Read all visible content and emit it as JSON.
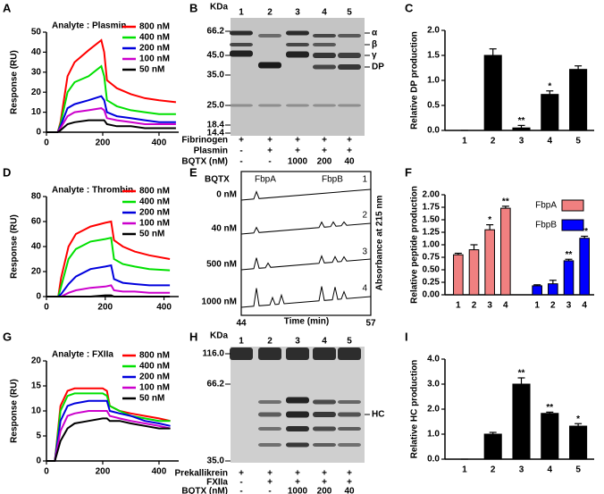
{
  "chart_data": [
    {
      "type": "line",
      "panel": "A",
      "title": "Analyte : Plasmin",
      "ylabel": "Response (RU)",
      "x": [
        0,
        40,
        50,
        75,
        100,
        150,
        195,
        205,
        215,
        250,
        300,
        350,
        400,
        460
      ],
      "xlim": [
        0,
        470
      ],
      "xticks": [
        0,
        200,
        400
      ],
      "ylim": [
        0,
        50
      ],
      "yticks": [
        0,
        10,
        20,
        30,
        40,
        50
      ],
      "legend": "upper right",
      "series": [
        {
          "name": "800 nM",
          "color": "#ff0000",
          "values": [
            0,
            0,
            5,
            28,
            35,
            41,
            46,
            40,
            26,
            22,
            19,
            17,
            16,
            15
          ]
        },
        {
          "name": "400 nM",
          "color": "#00e000",
          "values": [
            0,
            0,
            4,
            20,
            25,
            28,
            33,
            28,
            16,
            13,
            11,
            10,
            9,
            9
          ]
        },
        {
          "name": "200 nM",
          "color": "#0000dd",
          "values": [
            0,
            0,
            3,
            12,
            14,
            16,
            18,
            16,
            10,
            8,
            7,
            6,
            5,
            5
          ]
        },
        {
          "name": "100 nM",
          "color": "#cc00cc",
          "values": [
            0,
            0,
            2,
            8,
            10,
            11,
            12,
            11,
            7,
            6,
            5,
            4,
            4,
            4
          ]
        },
        {
          "name": "50 nM",
          "color": "#000000",
          "values": [
            0,
            0,
            1,
            4,
            5,
            6,
            6,
            6,
            4,
            3,
            3,
            2,
            2,
            2
          ]
        }
      ]
    },
    {
      "type": "bar",
      "panel": "C",
      "ylabel": "Relative DP production",
      "categories": [
        "1",
        "2",
        "3",
        "4",
        "5"
      ],
      "values": [
        0,
        1.5,
        0.05,
        0.72,
        1.22
      ],
      "errors": [
        0,
        0.13,
        0.05,
        0.07,
        0.07
      ],
      "significance": [
        null,
        null,
        "**",
        "*",
        null
      ],
      "color": "#000000",
      "ylim": [
        0,
        2
      ],
      "yticks": [
        {
          "value": 0,
          "label": "0.0"
        },
        0.5,
        {
          "value": 1,
          "label": "1.0"
        },
        1.5,
        {
          "value": 2,
          "label": "2.0"
        }
      ]
    },
    {
      "type": "line",
      "panel": "D",
      "title": "Analyte : Thrombin",
      "ylabel": "Response (RU)",
      "x": [
        0,
        40,
        50,
        75,
        100,
        150,
        200,
        220,
        230,
        260,
        300,
        350,
        420
      ],
      "xlim": [
        0,
        450
      ],
      "xticks": [
        0,
        200,
        400
      ],
      "ylim": [
        0,
        80
      ],
      "yticks": [
        0,
        20,
        40,
        60,
        80
      ],
      "legend": "upper right",
      "series": [
        {
          "name": "800 nM",
          "color": "#ff0000",
          "values": [
            0,
            0,
            15,
            40,
            50,
            56,
            59,
            60,
            45,
            40,
            36,
            33,
            30
          ]
        },
        {
          "name": "400 nM",
          "color": "#00e000",
          "values": [
            0,
            0,
            8,
            30,
            38,
            44,
            46,
            47,
            30,
            26,
            24,
            22,
            21
          ]
        },
        {
          "name": "200 nM",
          "color": "#0000dd",
          "values": [
            0,
            0,
            2,
            10,
            16,
            22,
            24,
            25,
            14,
            11,
            10,
            9,
            9
          ]
        },
        {
          "name": "100 nM",
          "color": "#cc00cc",
          "values": [
            0,
            0,
            0,
            3,
            5,
            7,
            8,
            9,
            5,
            4,
            4,
            3,
            3
          ]
        },
        {
          "name": "50 nM",
          "color": "#000000",
          "values": [
            0,
            0,
            0,
            0,
            0,
            0,
            1,
            1,
            0,
            0,
            0,
            0,
            0
          ]
        }
      ]
    },
    {
      "type": "bar",
      "panel": "F",
      "ylabel": "Relative peptide production",
      "categories": [
        "1",
        "2",
        "3",
        "4"
      ],
      "legend": "upper right",
      "series": [
        {
          "name": "FbpA",
          "color": "#f08080",
          "values": [
            0.8,
            0.9,
            1.3,
            1.73
          ],
          "errors": [
            0.03,
            0.1,
            0.1,
            0.04
          ],
          "significance": [
            null,
            null,
            "*",
            "**"
          ]
        },
        {
          "name": "FbpB",
          "color": "#0000ff",
          "values": [
            0.18,
            0.22,
            0.68,
            1.13
          ],
          "errors": [
            0.02,
            0.07,
            0.03,
            0.04
          ],
          "significance": [
            null,
            null,
            "**",
            "**"
          ]
        }
      ],
      "ylim": [
        0,
        2
      ],
      "yticks": [
        {
          "value": 0,
          "label": "0.00"
        },
        0.25,
        {
          "value": 0.5,
          "label": "0.50"
        },
        0.75,
        {
          "value": 1,
          "label": "1.00"
        },
        1.25,
        {
          "value": 1.5,
          "label": "1.50"
        },
        1.75,
        {
          "value": 2,
          "label": "2.00"
        }
      ]
    },
    {
      "type": "line",
      "panel": "G",
      "title": "Analyte : FXIIa",
      "ylabel": "Response (RU)",
      "x": [
        0,
        30,
        50,
        75,
        100,
        150,
        200,
        215,
        225,
        260,
        300,
        350,
        400,
        440
      ],
      "xlim": [
        0,
        470
      ],
      "xticks": [
        0,
        200,
        400
      ],
      "ylim": [
        0,
        20
      ],
      "yticks": [
        0,
        5,
        10,
        15,
        20
      ],
      "legend": "upper right",
      "series": [
        {
          "name": "800 nM",
          "color": "#ff0000",
          "values": [
            0,
            0,
            11,
            14,
            14.5,
            14.5,
            14.5,
            14,
            11,
            10,
            9.5,
            9,
            8.5,
            8
          ]
        },
        {
          "name": "400 nM",
          "color": "#00e000",
          "values": [
            0,
            0,
            10,
            13,
            13.5,
            13.5,
            13.5,
            13,
            11,
            10,
            9,
            8.5,
            8,
            8
          ]
        },
        {
          "name": "200 nM",
          "color": "#0000dd",
          "values": [
            0,
            0,
            8,
            11,
            11.5,
            12,
            12,
            12,
            10,
            9.5,
            9,
            8,
            7.5,
            7
          ]
        },
        {
          "name": "100 nM",
          "color": "#cc00cc",
          "values": [
            0,
            0,
            6,
            9,
            9.5,
            10,
            10,
            10,
            9,
            8.5,
            8,
            7.5,
            7,
            6.5
          ]
        },
        {
          "name": "50 nM",
          "color": "#000000",
          "values": [
            0,
            0,
            4,
            6.5,
            7.5,
            8,
            8.5,
            8.5,
            8,
            8,
            7.5,
            7,
            6.5,
            6.5
          ]
        }
      ]
    },
    {
      "type": "bar",
      "panel": "I",
      "ylabel": "Relative HC production",
      "categories": [
        "1",
        "2",
        "3",
        "4",
        "5"
      ],
      "values": [
        0,
        1.0,
        3.0,
        1.83,
        1.32
      ],
      "errors": [
        0,
        0.07,
        0.25,
        0.05,
        0.1
      ],
      "significance": [
        null,
        null,
        "**",
        "**",
        "*"
      ],
      "color": "#000000",
      "ylim": [
        0,
        4
      ],
      "yticks": [
        {
          "value": 0,
          "label": "0.0"
        },
        {
          "value": 1,
          "label": "1.0"
        },
        {
          "value": 2,
          "label": "2.0"
        },
        {
          "value": 3,
          "label": "3.0"
        },
        {
          "value": 4,
          "label": "4.0"
        }
      ]
    }
  ],
  "gels": [
    {
      "panel": "B",
      "unit": "KDa",
      "lanes": [
        "1",
        "2",
        "3",
        "4",
        "5"
      ],
      "markers": [
        "66.2",
        "45.0",
        "35.0",
        "25.0",
        "18.4",
        "14.4"
      ],
      "band_labels": [
        "α",
        "β",
        "γ",
        "DP"
      ],
      "rows": [
        {
          "name": "Fibrinogen",
          "cells": [
            "+",
            "+",
            "+",
            "+",
            "+"
          ]
        },
        {
          "name": "Plasmin",
          "cells": [
            "-",
            "+",
            "+",
            "+",
            "+"
          ]
        },
        {
          "name": "BQTX (nM)",
          "cells": [
            "-",
            "-",
            "1000",
            "200",
            "40"
          ]
        }
      ]
    },
    {
      "panel": "H",
      "unit": "KDa",
      "lanes": [
        "1",
        "2",
        "3",
        "4",
        "5"
      ],
      "markers": [
        "116.0",
        "66.2",
        "35.0"
      ],
      "band_labels": [
        "HC"
      ],
      "rows": [
        {
          "name": "Prekallikrein",
          "cells": [
            "+",
            "+",
            "+",
            "+",
            "+"
          ]
        },
        {
          "name": "FXIIa",
          "cells": [
            "-",
            "+",
            "+",
            "+",
            "+"
          ]
        },
        {
          "name": "BQTX (nM)",
          "cells": [
            "-",
            "-",
            "1000",
            "200",
            "40"
          ]
        }
      ]
    }
  ],
  "chromatogram": {
    "panel": "E",
    "header": "BQTX",
    "peptides": [
      "FbpA",
      "FbpB"
    ],
    "peptide_colors": [
      "#f08080",
      "#0000ff"
    ],
    "traces": [
      "0 nM",
      "40 nM",
      "500 nM",
      "1000 nM"
    ],
    "trace_numbers": [
      "1",
      "2",
      "3",
      "4"
    ],
    "ylabel": "Absorbance at 215 nm",
    "x_start": "44",
    "x_end": "57",
    "xlabel": "Time (min)"
  }
}
